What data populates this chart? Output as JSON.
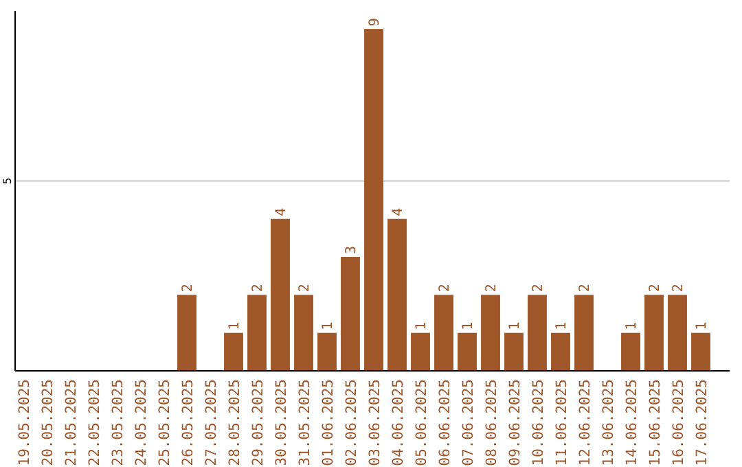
{
  "chart_data": {
    "type": "bar",
    "categories": [
      "19.05.2025",
      "20.05.2025",
      "21.05.2025",
      "22.05.2025",
      "23.05.2025",
      "24.05.2025",
      "25.05.2025",
      "26.05.2025",
      "27.05.2025",
      "28.05.2025",
      "29.05.2025",
      "30.05.2025",
      "31.05.2025",
      "01.06.2025",
      "02.06.2025",
      "03.06.2025",
      "04.06.2025",
      "05.06.2025",
      "06.06.2025",
      "07.06.2025",
      "08.06.2025",
      "09.06.2025",
      "10.06.2025",
      "11.06.2025",
      "12.06.2025",
      "13.06.2025",
      "14.06.2025",
      "15.06.2025",
      "16.06.2025",
      "17.06.2025"
    ],
    "values": [
      0,
      0,
      0,
      0,
      0,
      0,
      0,
      2,
      0,
      1,
      2,
      4,
      2,
      1,
      3,
      9,
      4,
      1,
      2,
      1,
      2,
      1,
      2,
      1,
      2,
      0,
      1,
      2,
      2,
      1
    ],
    "value_labels": [
      null,
      null,
      null,
      null,
      null,
      null,
      null,
      "2",
      null,
      "1",
      "2",
      "4",
      "2",
      "1",
      "3",
      "9",
      "4",
      "1",
      "2",
      "1",
      "2",
      "1",
      "2",
      "1",
      "2",
      null,
      "1",
      "2",
      "2",
      "1"
    ],
    "color": "#a0572a",
    "ylim": [
      0,
      9.4
    ],
    "yticks": [
      5
    ],
    "grid": "y"
  }
}
